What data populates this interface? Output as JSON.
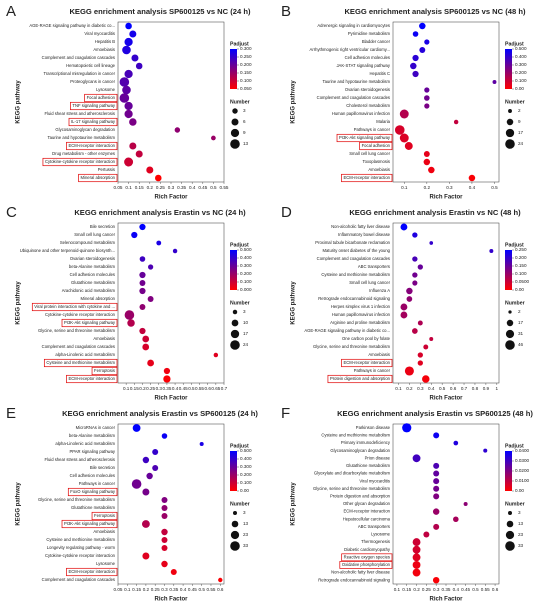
{
  "chart_data": [
    {
      "type": "scatter",
      "panel": "A",
      "title": "KEGG enrichment analysis SP600125 vs NC (24 h)",
      "xlabel": "Rich Factor",
      "ylabel": "KEGG pathway",
      "size_title": "Number",
      "color_title": "Padjust",
      "color_low": "#ff0000",
      "color_high": "#0000ff",
      "categories": [
        "AGE-RAGE signaling pathway in diabetic co...",
        "Viral myocarditis",
        "Hepatitis B",
        "Amoebiasis",
        "Complement and coagulation cascades",
        "Hematopoietic cell lineage",
        "Transcriptional misregulation in cancer",
        "Proteoglycans in cancer",
        "Lysosome",
        "Focal adhesion",
        "TNF signaling pathway",
        "Fluid shear stress and atherosclerosis",
        "IL-17 signaling pathway",
        "Glycosaminoglycan degradation",
        "Taurine and hypotaurine metabolism",
        "ECM-receptor interaction",
        "Drug metabolism - other enzymes",
        "Cytokine-cytokine receptor interaction",
        "Pertussis",
        "Mineral absorption"
      ],
      "x": [
        0.1,
        0.12,
        0.1,
        0.09,
        0.13,
        0.15,
        0.1,
        0.08,
        0.09,
        0.08,
        0.1,
        0.1,
        0.12,
        0.33,
        0.5,
        0.12,
        0.15,
        0.1,
        0.2,
        0.24
      ],
      "padjust": [
        0.3,
        0.28,
        0.28,
        0.27,
        0.25,
        0.24,
        0.23,
        0.22,
        0.21,
        0.2,
        0.2,
        0.19,
        0.18,
        0.16,
        0.15,
        0.12,
        0.11,
        0.1,
        0.08,
        0.05
      ],
      "number": [
        5,
        6,
        9,
        10,
        6,
        5,
        9,
        13,
        10,
        13,
        9,
        9,
        7,
        3,
        2,
        6,
        6,
        11,
        6,
        5
      ],
      "boxed": [
        9,
        10,
        12,
        15,
        17,
        19
      ],
      "xlim": [
        0.05,
        0.55
      ],
      "xticks": [
        0.05,
        0.1,
        0.15,
        0.2,
        0.25,
        0.3,
        0.35,
        0.4,
        0.45,
        0.5,
        0.55
      ],
      "padjust_ticks": [
        {
          "value": 0.3,
          "label": "0.300"
        },
        {
          "value": 0.25,
          "label": "0.250"
        },
        {
          "value": 0.2,
          "label": "0.200"
        },
        {
          "value": 0.15,
          "label": "0.150"
        },
        {
          "value": 0.1,
          "label": "0.100"
        },
        {
          "value": 0.05,
          "label": "0.050"
        }
      ],
      "number_ticks": [
        3,
        6,
        9,
        13
      ]
    },
    {
      "type": "scatter",
      "panel": "B",
      "title": "KEGG enrichment analysis SP600125 vs NC (48 h)",
      "xlabel": "Rich Factor",
      "ylabel": "KEGG pathway",
      "size_title": "Number",
      "color_title": "Padjust",
      "color_low": "#ff0000",
      "color_high": "#0000ff",
      "categories": [
        "Adrenergic signaling in cardiomyocytes",
        "Pyrimidine metabolism",
        "Bladder cancer",
        "Arrhythmogenic right ventricular cardiomy...",
        "Cell adhesion molecules",
        "JAK-STAT signaling pathway",
        "Hepatitis C",
        "Taurine and hypotaurine metabolism",
        "Ovarian steroidogenesis",
        "Complement and coagulation cascades",
        "Cholesterol metabolism",
        "Human papillomavirus infection",
        "Malaria",
        "Pathways in cancer",
        "PI3K-Akt signaling pathway",
        "Focal adhesion",
        "Small cell lung cancer",
        "Toxoplasmosis",
        "Amoebiasis",
        "ECM-receptor interaction"
      ],
      "x": [
        0.18,
        0.15,
        0.2,
        0.18,
        0.15,
        0.14,
        0.15,
        0.5,
        0.2,
        0.2,
        0.2,
        0.1,
        0.33,
        0.08,
        0.1,
        0.12,
        0.2,
        0.2,
        0.22,
        0.4
      ],
      "padjust": [
        0.5,
        0.48,
        0.45,
        0.43,
        0.42,
        0.4,
        0.38,
        0.32,
        0.3,
        0.28,
        0.26,
        0.15,
        0.12,
        0.08,
        0.07,
        0.06,
        0.05,
        0.04,
        0.03,
        0.01
      ],
      "number": [
        9,
        6,
        5,
        7,
        8,
        9,
        8,
        2,
        5,
        6,
        5,
        20,
        3,
        24,
        20,
        15,
        7,
        9,
        9,
        9
      ],
      "boxed": [
        14,
        15,
        19
      ],
      "xlim": [
        0.05,
        0.52
      ],
      "xticks": [
        0.1,
        0.2,
        0.3,
        0.4,
        0.5
      ],
      "padjust_ticks": [
        {
          "value": 0.5,
          "label": "0.500"
        },
        {
          "value": 0.4,
          "label": "0.400"
        },
        {
          "value": 0.3,
          "label": "0.300"
        },
        {
          "value": 0.2,
          "label": "0.200"
        },
        {
          "value": 0.1,
          "label": "0.100"
        },
        {
          "value": 0,
          "label": "0.00"
        }
      ],
      "number_ticks": [
        2,
        9,
        17,
        24
      ]
    },
    {
      "type": "scatter",
      "panel": "C",
      "title": "KEGG enrichment analysis Erastin vs NC (24 h)",
      "xlabel": "Rich Factor",
      "ylabel": "KEGG pathway",
      "size_title": "Number",
      "color_title": "Padjust",
      "color_low": "#ff0000",
      "color_high": "#0000ff",
      "categories": [
        "Bile secretion",
        "Small cell lung cancer",
        "Selenocompound metabolism",
        "Ubiquinone and other terpenoid-quinone biosynth...",
        "Ovarian steroidogenesis",
        "beta-Alanine metabolism",
        "Cell adhesion molecules",
        "Glutathione metabolism",
        "Arachidonic acid metabolism",
        "Mineral absorption",
        "Viral protein interaction with cytokine and ...",
        "Cytokine-cytokine receptor interaction",
        "PI3K-Akt signaling pathway",
        "Glycine, serine and threonine metabolism",
        "Amoebiasis",
        "Complement and coagulation cascades",
        "alpha-Linolenic acid metabolism",
        "Cysteine and methionine metabolism",
        "Ferroptosis",
        "ECM-receptor interaction"
      ],
      "x": [
        0.2,
        0.15,
        0.3,
        0.4,
        0.2,
        0.25,
        0.2,
        0.2,
        0.2,
        0.25,
        0.2,
        0.12,
        0.13,
        0.2,
        0.22,
        0.22,
        0.65,
        0.25,
        0.35,
        0.35
      ],
      "padjust": [
        0.5,
        0.48,
        0.45,
        0.4,
        0.38,
        0.35,
        0.3,
        0.28,
        0.27,
        0.25,
        0.22,
        0.2,
        0.15,
        0.12,
        0.1,
        0.08,
        0.06,
        0.05,
        0.03,
        0.01
      ],
      "number": [
        8,
        8,
        4,
        3,
        6,
        5,
        8,
        7,
        8,
        7,
        7,
        24,
        13,
        8,
        10,
        10,
        3,
        10,
        8,
        12
      ],
      "boxed": [
        10,
        12,
        17,
        18,
        19
      ],
      "xlim": [
        0.05,
        0.7
      ],
      "xticks": [
        0.1,
        0.15,
        0.2,
        0.25,
        0.3,
        0.35,
        0.4,
        0.45,
        0.5,
        0.55,
        0.6,
        0.65,
        0.7
      ],
      "padjust_ticks": [
        {
          "value": 0.5,
          "label": "0.500"
        },
        {
          "value": 0.4,
          "label": "0.400"
        },
        {
          "value": 0.3,
          "label": "0.300"
        },
        {
          "value": 0.2,
          "label": "0.200"
        },
        {
          "value": 0.1,
          "label": "0.100"
        },
        {
          "value": 0,
          "label": "0.000"
        }
      ],
      "number_ticks": [
        3,
        10,
        17,
        24
      ]
    },
    {
      "type": "scatter",
      "panel": "D",
      "title": "KEGG enrichment analysis Erastin vs NC (48 h)",
      "xlabel": "Rich Factor",
      "ylabel": "KEGG pathway",
      "size_title": "Number",
      "color_title": "Padjust",
      "color_low": "#ff0000",
      "color_high": "#0000ff",
      "categories": [
        "Non-alcoholic fatty liver disease",
        "Inflammatory bowel disease",
        "Proximal tubule bicarbonate reclamation",
        "Maturity onset diabetes of the young",
        "Complement and coagulation cascades",
        "ABC transporters",
        "Cysteine and methionine metabolism",
        "Small cell lung cancer",
        "Influenza A",
        "Retrograde endocannabinoid signaling",
        "Herpes simplex virus 1 infection",
        "Human papillomavirus infection",
        "Arginine and proline metabolism",
        "AGE-RAGE signaling pathway in diabetic co...",
        "One carbon pool by folate",
        "Glycine, serine and threonine metabolism",
        "Amoebiasis",
        "ECM-receptor interaction",
        "Pathways in cancer",
        "Protein digestion and absorption"
      ],
      "x": [
        0.15,
        0.25,
        0.4,
        0.95,
        0.25,
        0.3,
        0.25,
        0.25,
        0.2,
        0.2,
        0.15,
        0.15,
        0.3,
        0.25,
        0.4,
        0.35,
        0.3,
        0.3,
        0.2,
        0.35
      ],
      "padjust": [
        0.25,
        0.22,
        0.2,
        0.2,
        0.18,
        0.15,
        0.14,
        0.13,
        0.12,
        0.11,
        0.1,
        0.09,
        0.08,
        0.07,
        0.06,
        0.05,
        0.04,
        0.03,
        0.02,
        0.01
      ],
      "number": [
        20,
        10,
        3,
        4,
        10,
        10,
        10,
        9,
        17,
        12,
        20,
        20,
        8,
        12,
        4,
        8,
        10,
        10,
        40,
        25
      ],
      "boxed": [
        17,
        19
      ],
      "xlim": [
        0.05,
        1.02
      ],
      "xticks": [
        0.1,
        0.2,
        0.3,
        0.4,
        0.5,
        0.6,
        0.7,
        0.8,
        0.9,
        1
      ],
      "padjust_ticks": [
        {
          "value": 0.25,
          "label": "0.250"
        },
        {
          "value": 0.2,
          "label": "0.200"
        },
        {
          "value": 0.15,
          "label": "0.150"
        },
        {
          "value": 0.1,
          "label": "0.100"
        },
        {
          "value": 0.05,
          "label": "0.0500"
        },
        {
          "value": 0,
          "label": "0.00"
        }
      ],
      "number_ticks": [
        2,
        17,
        31,
        46
      ]
    },
    {
      "type": "scatter",
      "panel": "E",
      "title": "KEGG enrichment analysis Erastin vs SP600125 (24 h)",
      "xlabel": "Rich Factor",
      "ylabel": "KEGG pathway",
      "size_title": "Number",
      "color_title": "Padjust",
      "color_low": "#ff0000",
      "color_high": "#0000ff",
      "categories": [
        "MicroRNAs in cancer",
        "beta-Alanine metabolism",
        "alpha-Linolenic acid metabolism",
        "PPAR signaling pathway",
        "Fluid shear stress and atherosclerosis",
        "Bile secretion",
        "Cell adhesion molecules",
        "Pathways in cancer",
        "FoxO signaling pathway",
        "Glycine, serine and threonine metabolism",
        "Glutathione metabolism",
        "Ferroptosis",
        "PI3K-Akt signaling pathway",
        "Amoebiasis",
        "Cysteine and methionine metabolism",
        "Longevity regulating pathway - worm",
        "Cytokine-cytokine receptor interaction",
        "Lysosome",
        "ECM-receptor interaction",
        "Complement and coagulation cascades"
      ],
      "x": [
        0.15,
        0.3,
        0.5,
        0.25,
        0.2,
        0.25,
        0.22,
        0.15,
        0.2,
        0.3,
        0.3,
        0.3,
        0.2,
        0.3,
        0.3,
        0.3,
        0.2,
        0.3,
        0.35,
        0.6
      ],
      "padjust": [
        0.5,
        0.48,
        0.45,
        0.4,
        0.38,
        0.35,
        0.3,
        0.28,
        0.27,
        0.25,
        0.22,
        0.2,
        0.15,
        0.12,
        0.1,
        0.08,
        0.06,
        0.05,
        0.03,
        0.01
      ],
      "number": [
        20,
        8,
        3,
        10,
        12,
        10,
        12,
        33,
        15,
        10,
        10,
        10,
        20,
        12,
        10,
        10,
        15,
        12,
        10,
        4
      ],
      "boxed": [
        8,
        11,
        12,
        18
      ],
      "xlim": [
        0.05,
        0.62
      ],
      "xticks": [
        0.05,
        0.1,
        0.15,
        0.2,
        0.25,
        0.3,
        0.35,
        0.4,
        0.45,
        0.5,
        0.55,
        0.6
      ],
      "padjust_ticks": [
        {
          "value": 0.5,
          "label": "0.500"
        },
        {
          "value": 0.4,
          "label": "0.400"
        },
        {
          "value": 0.3,
          "label": "0.300"
        },
        {
          "value": 0.2,
          "label": "0.200"
        },
        {
          "value": 0.1,
          "label": "0.100"
        },
        {
          "value": 0,
          "label": "0.00"
        }
      ],
      "number_ticks": [
        3,
        13,
        23,
        33
      ]
    },
    {
      "type": "scatter",
      "panel": "F",
      "title": "KEGG enrichment analysis Erastin vs SP600125 (48 h)",
      "xlabel": "Rich Factor",
      "ylabel": "KEGG pathway",
      "size_title": "Number",
      "color_title": "Padjust",
      "color_low": "#ff0000",
      "color_high": "#0000ff",
      "categories": [
        "Parkinson disease",
        "Cysteine and methionine metabolism",
        "Primary immunodeficiency",
        "Glycosaminoglycan degradation",
        "Prion disease",
        "Glutathione metabolism",
        "Glyoxylate and dicarboxylate metabolism",
        "Viral myocarditis",
        "Glycine, serine and threonine metabolism",
        "Protein digestion and absorption",
        "Other glycan degradation",
        "ECM-receptor interaction",
        "Hepatocellular carcinoma",
        "ABC transporters",
        "Lysosome",
        "Thermogenesis",
        "Diabetic cardiomyopathy",
        "Reactive oxygen species",
        "Oxidative phosphorylation",
        "Non-alcoholic fatty liver disease",
        "Retrograde endocannabinoid signaling"
      ],
      "x": [
        0.15,
        0.3,
        0.4,
        0.55,
        0.2,
        0.3,
        0.3,
        0.3,
        0.3,
        0.3,
        0.45,
        0.3,
        0.4,
        0.3,
        0.25,
        0.2,
        0.2,
        0.2,
        0.2,
        0.2,
        0.3
      ],
      "padjust": [
        0.04,
        0.038,
        0.035,
        0.033,
        0.03,
        0.028,
        0.025,
        0.024,
        0.022,
        0.02,
        0.018,
        0.016,
        0.014,
        0.012,
        0.01,
        0.008,
        0.007,
        0.005,
        0.003,
        0.002,
        0.001
      ],
      "number": [
        30,
        10,
        5,
        3,
        20,
        10,
        10,
        10,
        10,
        10,
        3,
        12,
        8,
        10,
        10,
        20,
        20,
        20,
        20,
        20,
        12
      ],
      "boxed": [
        17,
        18
      ],
      "xlim": [
        0.08,
        0.62
      ],
      "xticks": [
        0.1,
        0.15,
        0.2,
        0.25,
        0.3,
        0.35,
        0.4,
        0.45,
        0.5,
        0.55,
        0.6
      ],
      "padjust_ticks": [
        {
          "value": 0.04,
          "label": "0.0400"
        },
        {
          "value": 0.03,
          "label": "0.0300"
        },
        {
          "value": 0.02,
          "label": "0.0200"
        },
        {
          "value": 0.01,
          "label": "0.0100"
        },
        {
          "value": 0,
          "label": "0.00"
        }
      ],
      "number_ticks": [
        3,
        13,
        23,
        33
      ]
    }
  ]
}
